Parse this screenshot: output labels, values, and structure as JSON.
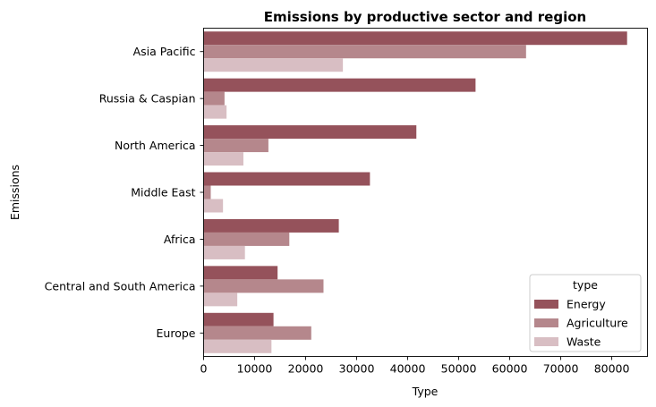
{
  "chart_data": {
    "type": "bar",
    "orientation": "horizontal",
    "title": "Emissions by productive sector and region",
    "xlabel": "Type",
    "ylabel": "Emissions",
    "categories": [
      "Asia Pacific",
      "Russia & Caspian",
      "North America",
      "Middle East",
      "Africa",
      "Central and South America",
      "Europe"
    ],
    "series": [
      {
        "name": "Energy",
        "color": "#95525b",
        "values": [
          83000,
          53300,
          41700,
          32600,
          26500,
          14500,
          13700
        ]
      },
      {
        "name": "Agriculture",
        "color": "#b5878c",
        "values": [
          63200,
          4100,
          12700,
          1400,
          16800,
          23500,
          21100
        ]
      },
      {
        "name": "Waste",
        "color": "#d8bec3",
        "values": [
          27300,
          4500,
          7800,
          3800,
          8100,
          6600,
          13300
        ]
      }
    ],
    "xlim": [
      0,
      87000
    ],
    "xticks": [
      0,
      10000,
      20000,
      30000,
      40000,
      50000,
      60000,
      70000,
      80000
    ],
    "xtick_labels": [
      "0",
      "10000",
      "20000",
      "30000",
      "40000",
      "50000",
      "60000",
      "70000",
      "80000"
    ],
    "grid": false,
    "legend": {
      "title": "type",
      "placement": "lower-right"
    }
  }
}
